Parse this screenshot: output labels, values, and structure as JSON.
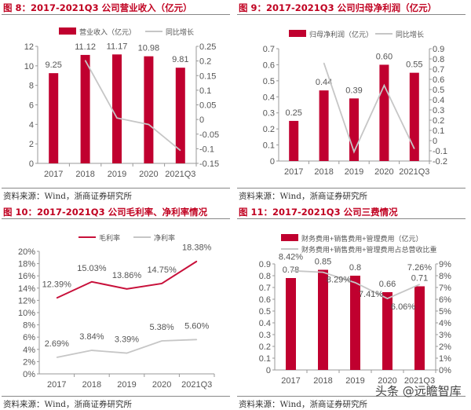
{
  "colors": {
    "bar": "#c0002f",
    "line_gray": "#c6c6c6",
    "line_red": "#c8103a",
    "title": "#c00020"
  },
  "source": "资料来源：Wind，浙商证券研究所",
  "watermark": "头条 @远瞻智库",
  "chart_data": [
    {
      "type": "bar+line",
      "title": "图 8：2017-2021Q3 公司营业收入（亿元）",
      "categories": [
        "2017",
        "2018",
        "2019",
        "2020",
        "2021Q3"
      ],
      "series": [
        {
          "name": "营业收入（亿元）",
          "kind": "bar",
          "axis": "left",
          "values": [
            9.25,
            11.12,
            11.17,
            10.98,
            9.81
          ],
          "labels": [
            "9.25",
            "11.12",
            "11.17",
            "10.98",
            "9.81"
          ]
        },
        {
          "name": "同比增长",
          "kind": "line",
          "axis": "right",
          "values": [
            null,
            0.202,
            0.005,
            -0.017,
            -0.106
          ]
        }
      ],
      "left_axis": {
        "range": [
          0,
          12
        ],
        "ticks": [
          "0",
          "2",
          "4",
          "6",
          "8",
          "10",
          "12"
        ]
      },
      "right_axis": {
        "range": [
          -0.15,
          0.25
        ],
        "ticks": [
          "-0.15",
          "-0.1",
          "-0.05",
          "0",
          "0.05",
          "0.1",
          "0.15",
          "0.2",
          "0.25"
        ]
      },
      "legend": "top",
      "grid": false
    },
    {
      "type": "bar+line",
      "title": "图 9：2017-2021Q3 公司归母净利润（亿元）",
      "categories": [
        "2017",
        "2018",
        "2019",
        "2020",
        "2021Q3"
      ],
      "series": [
        {
          "name": "归母净利润（亿元）",
          "kind": "bar",
          "axis": "left",
          "values": [
            0.25,
            0.44,
            0.39,
            0.6,
            0.55
          ],
          "labels": [
            "0.25",
            "0.44",
            "0.39",
            "0.60",
            "0.55"
          ]
        },
        {
          "name": "同比增长",
          "kind": "line",
          "axis": "right",
          "values": [
            null,
            0.76,
            -0.11,
            0.54,
            -0.08
          ]
        }
      ],
      "left_axis": {
        "range": [
          0,
          0.7
        ],
        "ticks": [
          "0",
          "0.1",
          "0.2",
          "0.3",
          "0.4",
          "0.5",
          "0.6",
          "0.7"
        ]
      },
      "right_axis": {
        "range": [
          -0.2,
          0.9
        ],
        "ticks": [
          "-0.2",
          "-0.1",
          "0",
          "0.1",
          "0.2",
          "0.3",
          "0.4",
          "0.5",
          "0.6",
          "0.7",
          "0.8",
          "0.9"
        ]
      },
      "legend": "top",
      "grid": false
    },
    {
      "type": "line",
      "title": "图 10：2017-2021Q3 公司毛利率、净利率情况",
      "categories": [
        "2017",
        "2018",
        "2019",
        "2020",
        "2021Q3"
      ],
      "series": [
        {
          "name": "毛利率",
          "kind": "line",
          "color": "red",
          "axis": "left",
          "values": [
            12.39,
            15.03,
            13.86,
            14.75,
            18.38
          ],
          "labels": [
            "12.39%",
            "15.03%",
            "13.86%",
            "14.75%",
            "18.38%"
          ]
        },
        {
          "name": "净利率",
          "kind": "line",
          "axis": "left",
          "values": [
            2.69,
            3.84,
            3.39,
            5.38,
            5.6
          ],
          "labels": [
            "2.69%",
            "3.84%",
            "3.39%",
            "5.38%",
            "5.60%"
          ]
        }
      ],
      "left_axis": {
        "range": [
          0,
          20
        ],
        "ticks": [
          "0%",
          "2%",
          "4%",
          "6%",
          "8%",
          "10%",
          "12%",
          "14%",
          "16%",
          "18%",
          "20%"
        ]
      },
      "legend": "top",
      "grid": false
    },
    {
      "type": "bar+line",
      "title": "图 11：2017-2021Q3 公司三费情况",
      "categories": [
        "2017",
        "2018",
        "2019",
        "2020",
        "2021Q3"
      ],
      "series": [
        {
          "name": "财务费用+销售费用+管理费用（亿元）",
          "kind": "bar",
          "axis": "left",
          "values": [
            0.78,
            0.85,
            0.8,
            0.66,
            0.71
          ],
          "labels": [
            "0.78",
            "0.85",
            "0.8",
            "0.66",
            "0.71"
          ]
        },
        {
          "name": "财务费用+销售费用+管理费用占总营收比重",
          "kind": "line",
          "axis": "right",
          "values": [
            8.42,
            8.29,
            7.41,
            6.06,
            7.26
          ],
          "labels": [
            "8.42%",
            "8.29%",
            "7.41%",
            "6.06%",
            "7.26%"
          ]
        }
      ],
      "left_axis": {
        "range": [
          0,
          0.9
        ],
        "ticks": [
          "0",
          "0.1",
          "0.2",
          "0.3",
          "0.4",
          "0.5",
          "0.6",
          "0.7",
          "0.8",
          "0.9"
        ]
      },
      "right_axis": {
        "range": [
          0,
          9
        ],
        "ticks": [
          "0%",
          "1%",
          "2%",
          "3%",
          "4%",
          "5%",
          "6%",
          "7%",
          "8%",
          "9%"
        ]
      },
      "legend": "top-stacked",
      "grid": false
    }
  ]
}
